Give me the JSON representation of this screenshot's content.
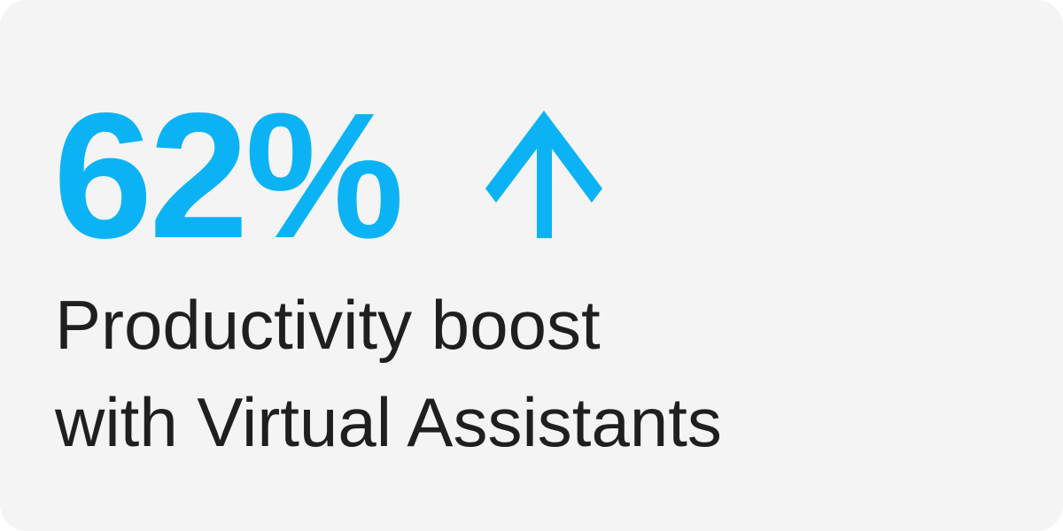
{
  "stat": {
    "value": "62%",
    "trend_icon": "arrow-up-icon",
    "accent_color": "#0bb3f5"
  },
  "caption": {
    "line1": "Productivity boost",
    "line2": "with Virtual Assistants"
  }
}
